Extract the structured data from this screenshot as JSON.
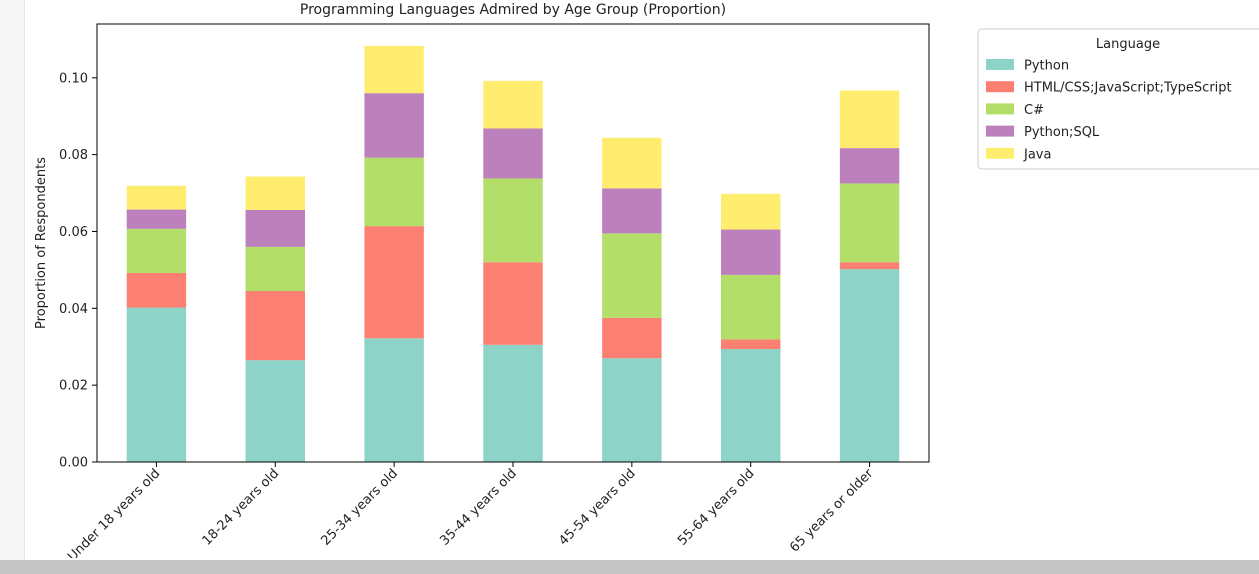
{
  "colors": {
    "background": "#ffffff",
    "gutter": "#f6f6f6",
    "scrollbar": "#c5c5c5"
  },
  "chart_data": {
    "type": "bar",
    "stacked": true,
    "title": "Programming Languages Admired by Age Group (Proportion)",
    "xlabel": "",
    "ylabel": "Proportion of Respondents",
    "ylim": [
      0,
      0.114
    ],
    "yticks": [
      "0.00",
      "0.02",
      "0.04",
      "0.06",
      "0.08",
      "0.10"
    ],
    "categories": [
      "Under 18 years old",
      "18-24 years old",
      "25-34 years old",
      "35-44 years old",
      "45-54 years old",
      "55-64 years old",
      "65 years or older"
    ],
    "series": [
      {
        "name": "Python",
        "color": "#8dd3c7",
        "values": [
          0.0402,
          0.0265,
          0.0322,
          0.0305,
          0.027,
          0.0294,
          0.0502
        ]
      },
      {
        "name": "HTML/CSS;JavaScript;TypeScript",
        "color": "#fb8072",
        "values": [
          0.009,
          0.018,
          0.0292,
          0.0215,
          0.0105,
          0.0025,
          0.0018
        ]
      },
      {
        "name": "C#",
        "color": "#b3de69",
        "values": [
          0.0115,
          0.0115,
          0.0178,
          0.0218,
          0.022,
          0.0168,
          0.0205
        ]
      },
      {
        "name": "Python;SQL",
        "color": "#bc80bd",
        "values": [
          0.005,
          0.0096,
          0.0168,
          0.013,
          0.0117,
          0.0118,
          0.0092
        ]
      },
      {
        "name": "Java",
        "color": "#ffed6f",
        "values": [
          0.0062,
          0.0087,
          0.0123,
          0.0124,
          0.0132,
          0.0093,
          0.015
        ]
      }
    ],
    "legend": {
      "title": "Language",
      "placement": "outside-right-top"
    },
    "grid": false
  }
}
